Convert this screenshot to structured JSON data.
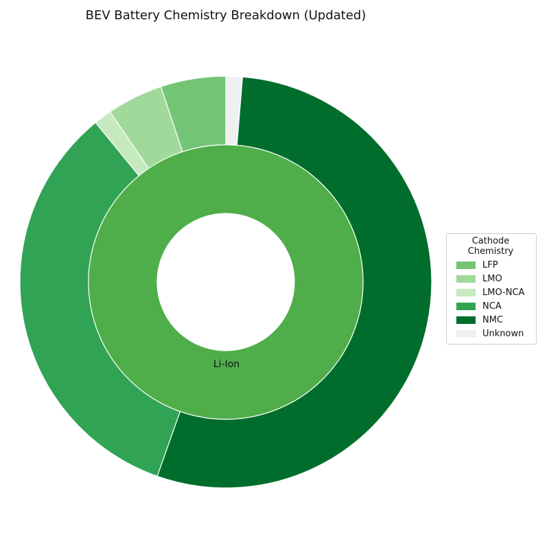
{
  "chart_data": {
    "type": "pie",
    "subtype": "nested-donut",
    "title": "BEV Battery Chemistry Breakdown (Updated)",
    "inner_ring": [
      {
        "label": "Li-Ion",
        "value": 100,
        "color": "#4fae4a"
      }
    ],
    "outer_ring": [
      {
        "label": "Unknown",
        "value": 1.3,
        "color": "#f0f0f0"
      },
      {
        "label": "NMC",
        "value": 54.1,
        "color": "#006d2c"
      },
      {
        "label": "NCA",
        "value": 33.7,
        "color": "#31a354"
      },
      {
        "label": "LMO-NCA",
        "value": 1.4,
        "color": "#c7e9c0"
      },
      {
        "label": "LMO",
        "value": 4.4,
        "color": "#a1d99b"
      },
      {
        "label": "LFP",
        "value": 5.1,
        "color": "#74c476"
      }
    ],
    "legend": {
      "title": "Cathode Chemistry",
      "placement": "right",
      "items": [
        {
          "label": "LFP",
          "color": "#74c476"
        },
        {
          "label": "LMO",
          "color": "#a1d99b"
        },
        {
          "label": "LMO-NCA",
          "color": "#c7e9c0"
        },
        {
          "label": "NCA",
          "color": "#31a354"
        },
        {
          "label": "NMC",
          "color": "#006d2c"
        },
        {
          "label": "Unknown",
          "color": "#f0f0f0"
        }
      ]
    }
  }
}
